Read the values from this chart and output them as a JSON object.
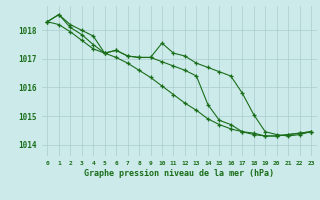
{
  "background_color": "#cceaea",
  "grid_color": "#aacccc",
  "line_color": "#1a6e1a",
  "marker_color": "#1a6e1a",
  "xlabel": "Graphe pression niveau de la mer (hPa)",
  "xlim": [
    -0.5,
    23.5
  ],
  "ylim": [
    1013.6,
    1018.85
  ],
  "yticks": [
    1014,
    1015,
    1016,
    1017,
    1018
  ],
  "xticks": [
    0,
    1,
    2,
    3,
    4,
    5,
    6,
    7,
    8,
    9,
    10,
    11,
    12,
    13,
    14,
    15,
    16,
    17,
    18,
    19,
    20,
    21,
    22,
    23
  ],
  "series1": [
    1018.3,
    1018.55,
    1018.2,
    1018.0,
    1017.8,
    1017.2,
    1017.3,
    1017.1,
    1017.05,
    1017.05,
    1017.55,
    1017.2,
    1017.1,
    1016.85,
    1016.7,
    1016.55,
    1016.4,
    1015.8,
    1015.05,
    1014.45,
    1014.35,
    1014.3,
    1014.35,
    1014.45
  ],
  "series2": [
    1018.3,
    1018.55,
    1018.1,
    1017.85,
    1017.5,
    1017.2,
    1017.3,
    1017.1,
    1017.05,
    1017.05,
    1016.9,
    1016.75,
    1016.6,
    1016.4,
    1015.4,
    1014.85,
    1014.7,
    1014.45,
    1014.35,
    1014.3,
    1014.3,
    1014.35,
    1014.4,
    1014.45
  ],
  "series3": [
    1018.3,
    1018.2,
    1017.95,
    1017.65,
    1017.35,
    1017.2,
    1017.05,
    1016.85,
    1016.6,
    1016.35,
    1016.05,
    1015.75,
    1015.45,
    1015.2,
    1014.9,
    1014.7,
    1014.55,
    1014.45,
    1014.4,
    1014.3,
    1014.3,
    1014.35,
    1014.4,
    1014.45
  ]
}
